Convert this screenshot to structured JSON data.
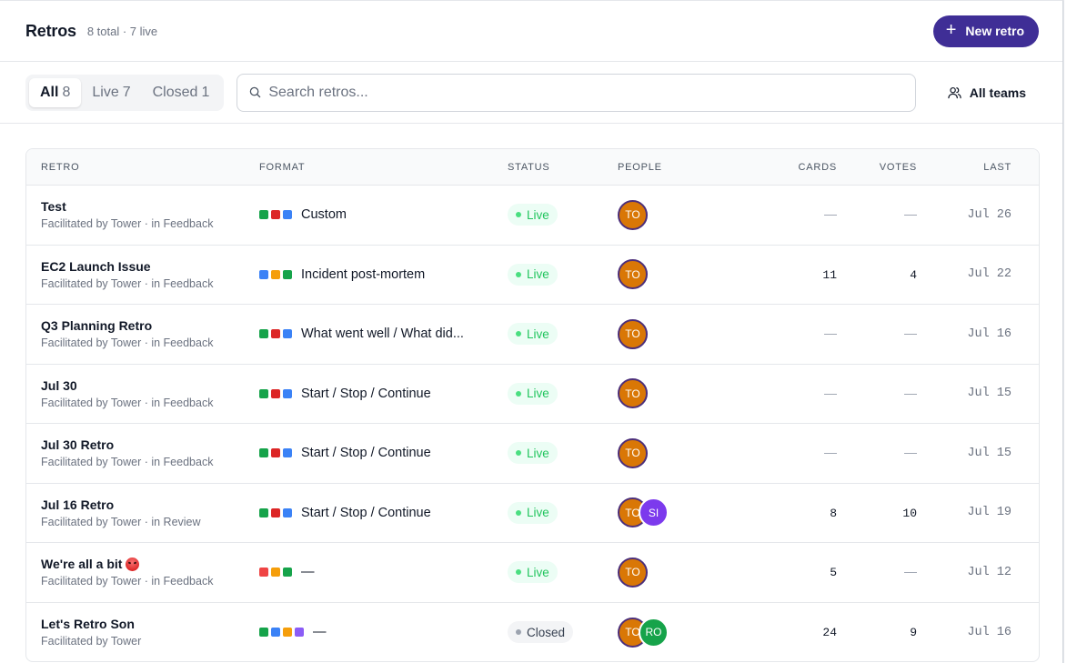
{
  "header": {
    "title": "Retros",
    "count": "8 total · 7 live",
    "new_button": "New retro",
    "accent": "#3f2e96"
  },
  "tabs": [
    {
      "label": "All",
      "count": "8",
      "active": true
    },
    {
      "label": "Live",
      "count": "7",
      "active": false
    },
    {
      "label": "Closed",
      "count": "1",
      "active": false
    }
  ],
  "search": {
    "placeholder": "Search retros...",
    "value": ""
  },
  "teams_button": "All teams",
  "table": {
    "headers": {
      "retro": "RETRO",
      "format": "FORMAT",
      "status": "STATUS",
      "people": "PEOPLE",
      "cards": "CARDS",
      "votes": "VOTES",
      "last": "LAST"
    },
    "rows": [
      {
        "name": "Test",
        "emoji": false,
        "sub": "Facilitated by Tower · in Feedback",
        "dots": [
          "#16a34a",
          "#dc2626",
          "#3b82f6"
        ],
        "format": "Custom",
        "status": "Live",
        "people": [
          {
            "initials": "TO",
            "color": "#d97706"
          }
        ],
        "cards": "—",
        "votes": "—",
        "last": "Jul 26"
      },
      {
        "name": "EC2 Launch Issue",
        "emoji": false,
        "sub": "Facilitated by Tower · in Feedback",
        "dots": [
          "#3b82f6",
          "#f59e0b",
          "#16a34a"
        ],
        "format": "Incident post-mortem",
        "status": "Live",
        "people": [
          {
            "initials": "TO",
            "color": "#d97706"
          }
        ],
        "cards": "11",
        "votes": "4",
        "last": "Jul 22"
      },
      {
        "name": "Q3 Planning Retro",
        "emoji": false,
        "sub": "Facilitated by Tower · in Feedback",
        "dots": [
          "#16a34a",
          "#dc2626",
          "#3b82f6"
        ],
        "format": "What went well / What did...",
        "status": "Live",
        "people": [
          {
            "initials": "TO",
            "color": "#d97706"
          }
        ],
        "cards": "—",
        "votes": "—",
        "last": "Jul 16"
      },
      {
        "name": "Jul 30",
        "emoji": false,
        "sub": "Facilitated by Tower · in Feedback",
        "dots": [
          "#16a34a",
          "#dc2626",
          "#3b82f6"
        ],
        "format": "Start / Stop / Continue",
        "status": "Live",
        "people": [
          {
            "initials": "TO",
            "color": "#d97706"
          }
        ],
        "cards": "—",
        "votes": "—",
        "last": "Jul 15"
      },
      {
        "name": "Jul 30 Retro",
        "emoji": false,
        "sub": "Facilitated by Tower · in Feedback",
        "dots": [
          "#16a34a",
          "#dc2626",
          "#3b82f6"
        ],
        "format": "Start / Stop / Continue",
        "status": "Live",
        "people": [
          {
            "initials": "TO",
            "color": "#d97706"
          }
        ],
        "cards": "—",
        "votes": "—",
        "last": "Jul 15"
      },
      {
        "name": "Jul 16 Retro",
        "emoji": false,
        "sub": "Facilitated by Tower · in Review",
        "dots": [
          "#16a34a",
          "#dc2626",
          "#3b82f6"
        ],
        "format": "Start / Stop / Continue",
        "status": "Live",
        "people": [
          {
            "initials": "TO",
            "color": "#d97706"
          },
          {
            "initials": "SI",
            "color": "#7c3aed"
          }
        ],
        "cards": "8",
        "votes": "10",
        "last": "Jul 19"
      },
      {
        "name": "We're all a bit",
        "emoji": true,
        "sub": "Facilitated by Tower · in Feedback",
        "dots": [
          "#ef4444",
          "#f59e0b",
          "#16a34a"
        ],
        "format": "—",
        "status": "Live",
        "people": [
          {
            "initials": "TO",
            "color": "#d97706"
          }
        ],
        "cards": "5",
        "votes": "—",
        "last": "Jul 12"
      },
      {
        "name": "Let's Retro Son",
        "emoji": false,
        "sub": "Facilitated by Tower",
        "dots": [
          "#16a34a",
          "#3b82f6",
          "#f59e0b",
          "#8b5cf6"
        ],
        "format": "—",
        "status": "Closed",
        "people": [
          {
            "initials": "TO",
            "color": "#d97706"
          },
          {
            "initials": "RO",
            "color": "#16a34a"
          }
        ],
        "cards": "24",
        "votes": "9",
        "last": "Jul 16"
      }
    ]
  }
}
